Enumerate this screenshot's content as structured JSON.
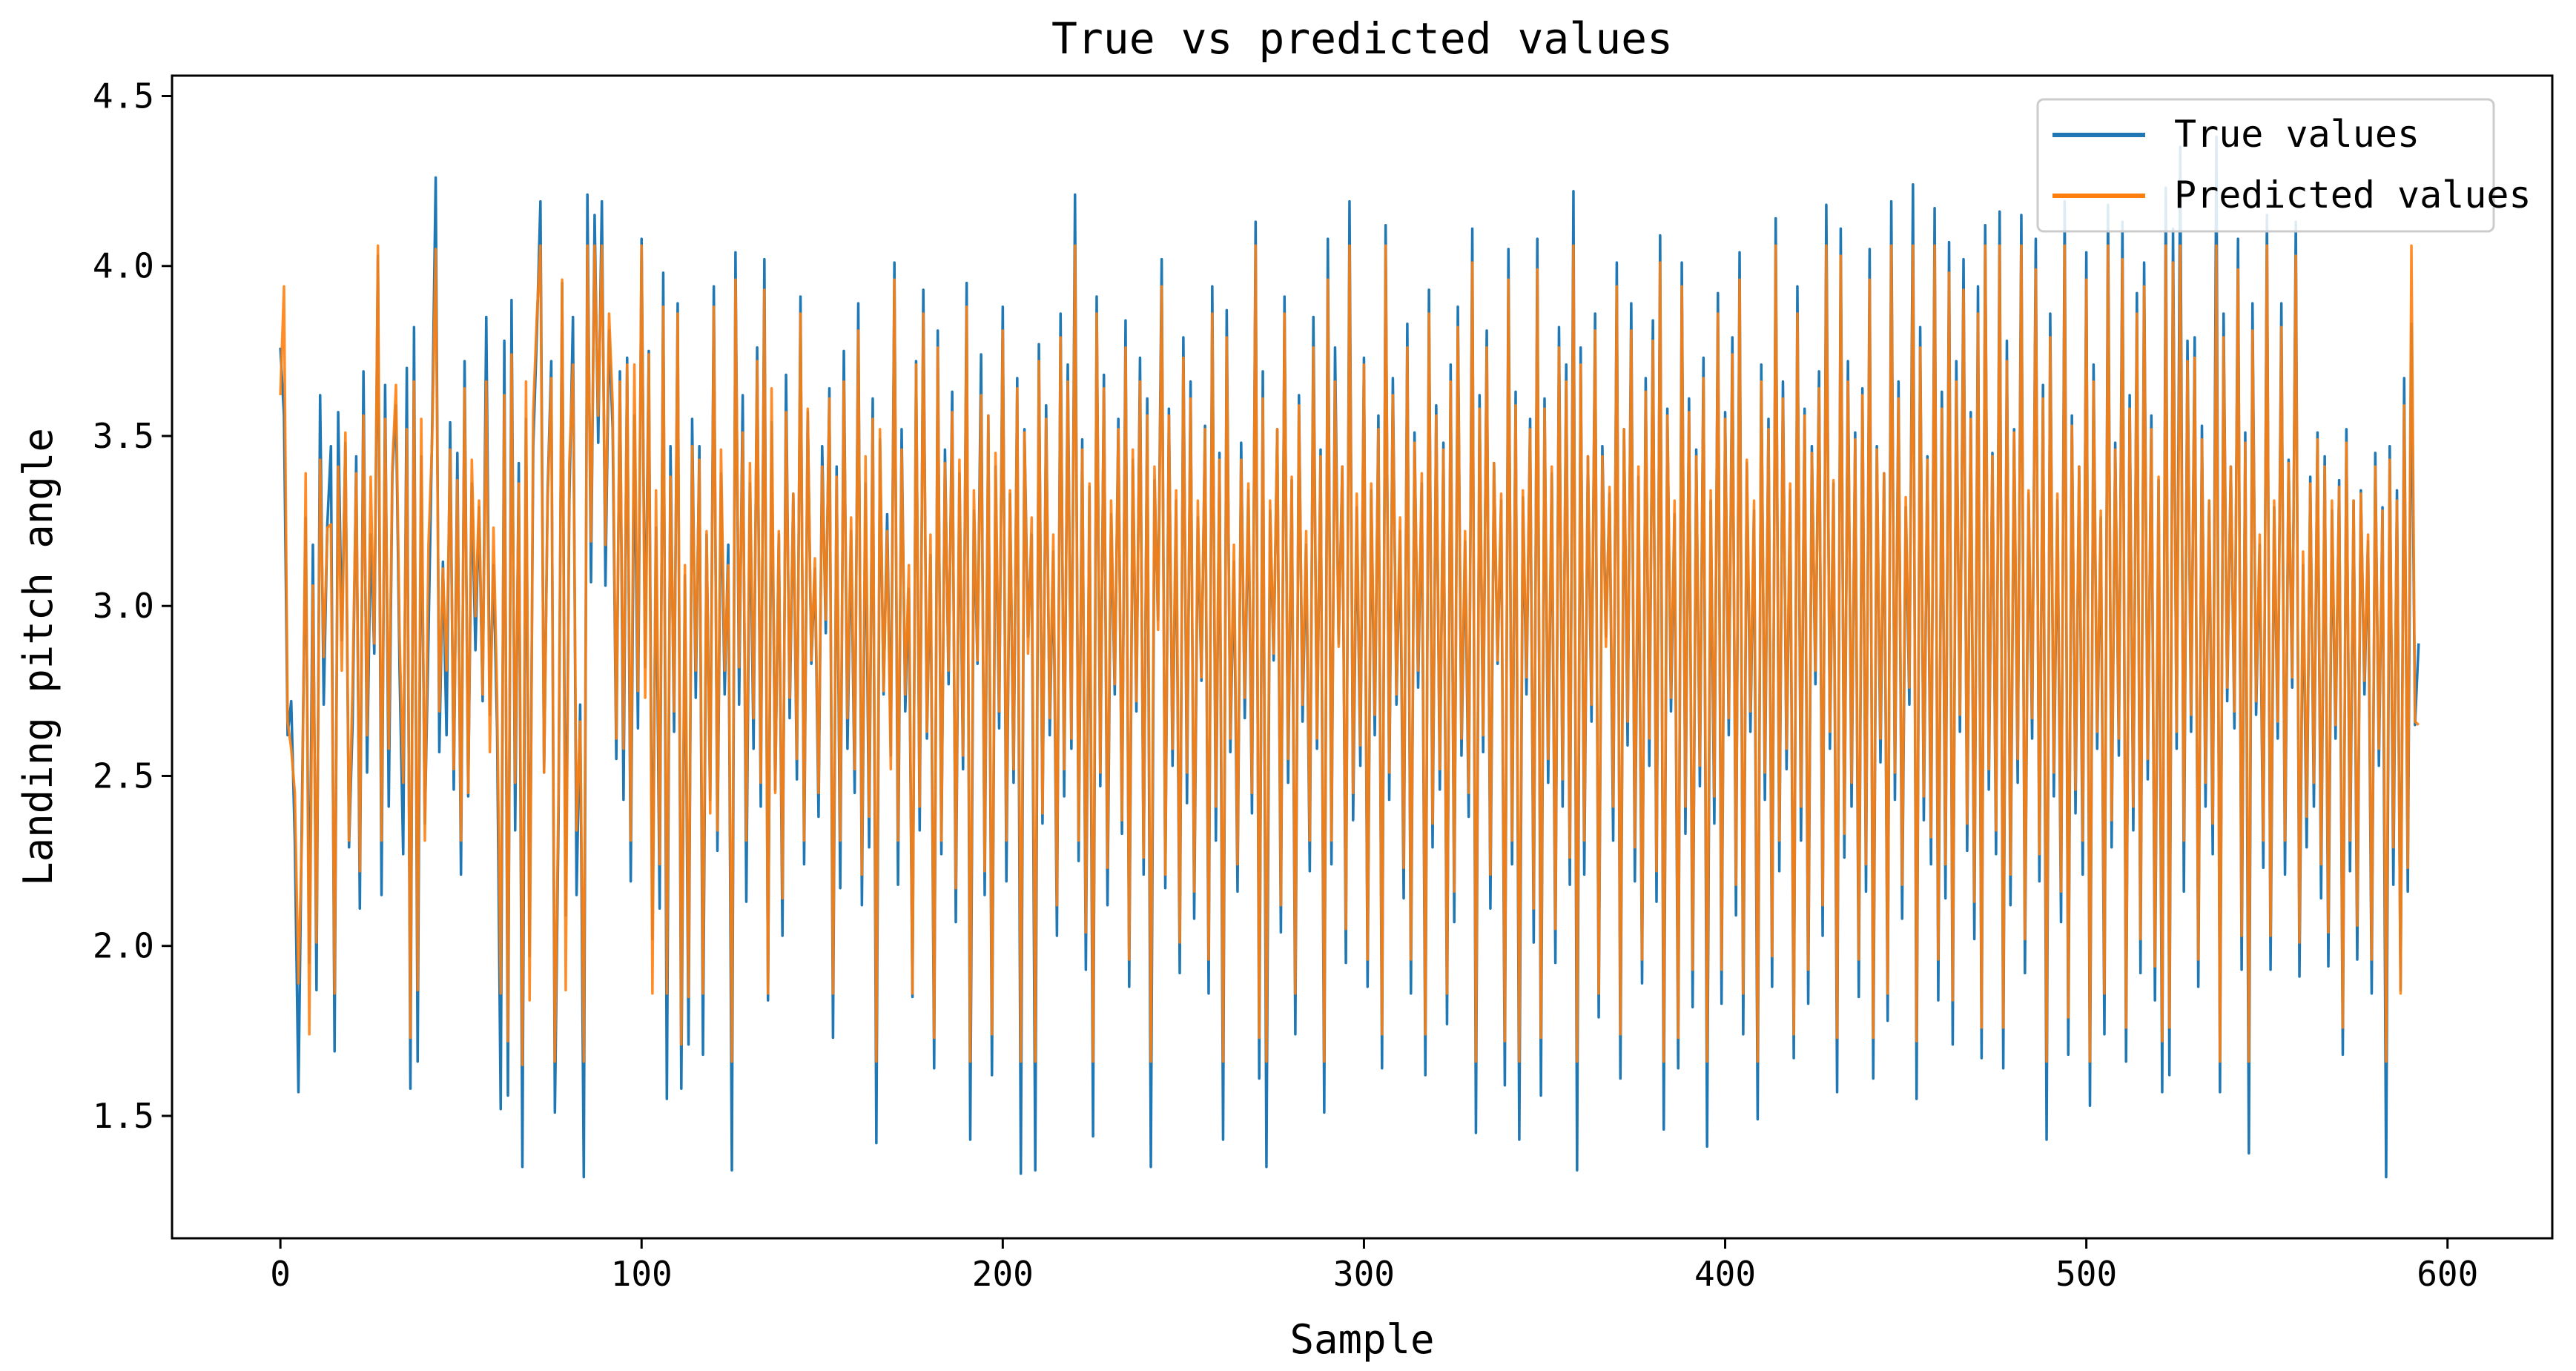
{
  "chart_data": {
    "type": "line",
    "title": "True vs predicted values",
    "xlabel": "Sample",
    "ylabel": "Landing pitch angle",
    "xlim": [
      -30,
      629
    ],
    "ylim": [
      1.14,
      4.56
    ],
    "x_ticks": [
      0,
      100,
      200,
      300,
      400,
      500,
      600
    ],
    "y_ticks": [
      1.5,
      2.0,
      2.5,
      3.0,
      3.5,
      4.0,
      4.5
    ],
    "y_tick_labels": [
      "1.5",
      "2.0",
      "2.5",
      "3.0",
      "3.5",
      "4.0",
      "4.5"
    ],
    "grid": false,
    "legend_position": "top-right",
    "n_samples": 600,
    "series": [
      {
        "name": "True values",
        "color": "#1f77b4",
        "values": [
          3.76,
          3.56,
          2.62,
          2.72,
          2.31,
          1.57,
          2.43,
          3.26,
          1.95,
          3.18,
          1.87,
          3.62,
          2.71,
          3.24,
          3.47,
          1.69,
          3.57,
          2.9,
          3.48,
          2.29,
          2.66,
          3.44,
          2.11,
          3.69,
          2.51,
          3.21,
          2.86,
          4.03,
          2.15,
          3.65,
          2.41,
          3.39,
          3.59,
          2.81,
          2.27,
          3.7,
          1.58,
          3.82,
          1.66,
          3.44,
          2.36,
          2.91,
          3.51,
          4.26,
          2.57,
          3.13,
          2.62,
          3.54,
          2.46,
          3.45,
          2.21,
          3.72,
          2.44,
          3.36,
          2.87,
          3.29,
          2.72,
          3.85,
          2.68,
          3.12,
          2.64,
          1.52,
          3.78,
          1.56,
          3.9,
          2.34,
          3.42,
          1.35,
          3.55,
          1.97,
          3.47,
          3.8,
          4.19,
          2.51,
          3.34,
          3.72,
          1.51,
          2.37,
          3.95,
          2.09,
          3.31,
          3.85,
          2.15,
          2.71,
          1.32,
          4.21,
          3.07,
          4.15,
          3.48,
          4.19,
          3.06,
          3.81,
          3.52,
          2.55,
          3.69,
          2.43,
          3.73,
          2.19,
          3.56,
          2.64,
          4.08,
          2.82,
          3.75,
          2.02,
          3.23,
          2.11,
          3.98,
          1.55,
          3.47,
          2.63,
          3.89,
          1.58,
          3.09,
          1.71,
          3.55,
          2.73,
          3.47,
          1.68,
          3.21,
          2.43,
          3.94,
          2.28,
          3.39,
          2.74,
          3.18,
          1.34,
          4.04,
          2.71,
          3.62,
          2.13,
          3.36,
          2.58,
          3.76,
          2.41,
          4.02,
          1.84,
          3.54,
          2.46,
          3.21,
          2.03,
          3.68,
          2.67,
          3.33,
          2.49,
          3.91,
          2.24,
          3.57,
          2.83,
          3.11,
          2.38,
          3.47,
          2.92,
          3.64,
          1.73,
          3.41,
          2.17,
          3.75,
          2.58,
          3.22,
          2.45,
          3.89,
          2.12,
          3.36,
          2.29,
          3.61,
          1.42,
          3.49,
          2.74,
          3.27,
          2.56,
          4.01,
          2.18,
          3.52,
          2.69,
          3.05,
          1.85,
          3.72,
          2.34,
          3.93,
          2.61,
          3.15,
          1.64,
          3.81,
          2.27,
          3.46,
          2.77,
          3.63,
          2.07,
          3.39,
          2.52,
          3.95,
          1.43,
          3.28,
          2.83,
          3.74,
          2.15,
          3.56,
          1.62,
          3.41,
          2.64,
          3.88,
          2.19,
          3.33,
          2.48,
          3.67,
          1.33,
          3.52,
          2.91,
          3.21,
          1.34,
          3.77,
          2.36,
          3.59,
          2.62,
          3.16,
          2.03,
          3.86,
          2.44,
          3.71,
          2.58,
          4.21,
          2.25,
          3.49,
          1.93,
          3.35,
          1.44,
          3.91,
          2.47,
          3.68,
          2.12,
          3.27,
          2.74,
          3.55,
          2.33,
          3.84,
          1.88,
          3.43,
          2.69,
          3.73,
          2.21,
          3.61,
          1.35,
          3.37,
          2.96,
          4.02,
          2.17,
          3.58,
          2.53,
          3.31,
          1.92,
          3.79,
          2.42,
          3.66,
          2.08,
          3.26,
          2.78,
          3.53,
          1.86,
          3.94,
          2.31,
          3.45,
          1.43,
          3.87,
          2.57,
          3.13,
          2.16,
          3.48,
          2.67,
          3.34,
          2.39,
          4.13,
          1.61,
          3.69,
          1.35,
          3.28,
          2.84,
          3.52,
          2.04,
          3.91,
          2.48,
          3.37,
          1.74,
          3.62,
          2.66,
          3.18,
          2.22,
          3.85,
          2.58,
          3.46,
          1.51,
          4.08,
          2.24,
          3.76,
          2.89,
          3.41,
          1.95,
          4.19,
          2.37,
          3.29,
          2.53,
          3.73,
          1.88,
          3.34,
          2.62,
          3.56,
          1.64,
          4.12,
          2.43,
          3.67,
          2.71,
          3.22,
          2.14,
          3.83,
          1.86,
          3.51,
          2.76,
          3.36,
          1.62,
          3.93,
          2.29,
          3.59,
          2.46,
          3.48,
          1.77,
          3.71,
          2.07,
          3.88,
          2.56,
          3.19,
          2.38,
          4.11,
          1.45,
          3.62,
          2.57,
          3.81,
          2.11,
          3.42,
          2.83,
          3.31,
          1.59,
          4.05,
          2.24,
          3.63,
          1.43,
          3.32,
          2.74,
          3.55,
          2.01,
          4.08,
          1.56,
          3.61,
          2.48,
          3.39,
          1.95,
          3.82,
          2.41,
          3.71,
          2.18,
          4.22,
          1.34,
          3.76,
          2.21,
          3.44,
          2.66,
          3.86,
          1.79,
          3.47,
          2.91,
          3.33,
          2.31,
          4.01,
          1.61,
          3.52,
          2.59,
          3.89,
          2.19,
          3.38,
          1.89,
          3.67,
          2.53,
          3.84,
          2.13,
          4.09,
          1.46,
          3.58,
          2.69,
          3.27,
          1.64,
          4.01,
          2.33,
          3.61,
          1.82,
          3.46,
          2.47,
          3.73,
          1.41,
          3.31,
          2.36,
          3.92,
          1.83,
          3.57,
          2.62,
          3.79,
          2.09,
          4.04,
          1.74,
          3.42,
          2.63,
          3.28,
          1.49,
          3.71,
          2.43,
          3.55,
          1.88,
          4.14,
          2.22,
          3.66,
          2.52,
          3.34,
          1.67,
          3.94,
          2.31,
          3.58,
          1.83,
          3.47,
          2.77,
          3.69,
          2.03,
          4.18,
          2.58,
          3.36,
          1.57,
          4.11,
          2.26,
          3.72,
          2.41,
          3.51,
          1.85,
          3.64,
          2.16,
          4.05,
          1.61,
          3.47,
          2.54,
          3.39,
          1.78,
          4.19,
          2.43,
          3.66,
          2.08,
          3.29,
          2.71,
          4.24,
          1.55,
          3.82,
          2.37,
          3.44,
          2.24,
          4.17,
          1.84,
          3.63,
          2.14,
          4.07,
          1.71,
          3.72,
          2.63,
          4.02,
          2.28,
          3.57,
          2.02,
          3.94,
          1.67,
          4.12,
          2.46,
          3.45,
          2.27,
          4.16,
          1.64,
          3.78,
          2.12,
          3.52,
          2.48,
          4.15,
          1.92,
          3.33,
          2.61,
          4.08,
          2.19,
          3.65,
          1.43,
          3.86,
          2.44,
          3.31,
          2.07,
          4.19,
          1.68,
          3.56,
          2.39,
          3.41,
          2.21,
          4.04,
          1.53,
          3.71,
          2.58,
          3.26,
          1.74,
          4.18,
          2.29,
          3.48,
          2.56,
          4.13,
          1.66,
          3.62,
          2.34,
          3.92,
          1.92,
          4.01,
          2.49,
          3.56,
          1.84,
          3.37,
          1.57,
          4.23,
          1.62,
          4.11,
          2.58,
          4.35,
          2.16,
          3.78,
          2.63,
          3.79,
          1.88,
          3.53,
          2.41,
          3.31,
          2.27,
          4.38,
          1.57,
          3.86,
          2.72,
          3.41,
          2.64,
          4.08,
          1.93,
          3.51,
          1.39,
          3.89,
          2.68,
          3.18,
          2.23,
          4.15,
          1.93,
          3.29,
          2.61,
          3.89,
          2.21,
          3.43,
          2.76,
          4.13,
          1.91,
          3.12,
          2.29,
          3.38,
          2.41,
          3.51,
          2.14,
          3.44,
          1.94,
          3.28,
          2.61,
          3.37,
          1.68,
          3.52,
          2.22,
          3.31,
          1.96,
          3.34,
          2.74,
          3.19,
          1.86,
          3.45,
          2.53,
          3.29,
          1.32,
          3.47,
          2.18,
          3.34,
          1.87,
          3.67,
          2.16,
          3.83,
          2.65,
          2.89
        ]
      },
      {
        "name": "Predicted values",
        "color": "#ff7f0e",
        "values": [
          3.62,
          3.94,
          2.66,
          2.58,
          2.45,
          1.89,
          2.34,
          3.39,
          1.74,
          3.06,
          2.01,
          3.43,
          2.85,
          3.23,
          3.24,
          1.86,
          3.41,
          2.81,
          3.51,
          2.31,
          2.77,
          3.39,
          2.22,
          3.56,
          2.62,
          3.38,
          2.89,
          4.06,
          2.31,
          3.55,
          2.58,
          3.41,
          3.65,
          2.91,
          2.48,
          3.52,
          1.73,
          3.66,
          1.87,
          3.55,
          2.31,
          3.18,
          3.48,
          4.05,
          2.69,
          3.11,
          2.81,
          3.46,
          2.52,
          3.37,
          2.31,
          3.64,
          2.45,
          3.43,
          2.97,
          3.31,
          2.74,
          3.66,
          2.57,
          3.23,
          2.73,
          1.86,
          3.62,
          1.72,
          3.74,
          2.48,
          3.36,
          1.65,
          3.66,
          1.84,
          3.57,
          3.85,
          4.06,
          2.51,
          3.32,
          3.67,
          1.66,
          2.44,
          3.96,
          1.87,
          3.42,
          3.71,
          2.34,
          2.66,
          1.66,
          4.06,
          3.19,
          4.06,
          3.56,
          4.06,
          3.18,
          3.86,
          3.59,
          2.61,
          3.66,
          2.58,
          3.71,
          2.31,
          3.71,
          2.75,
          4.06,
          2.73,
          3.74,
          1.86,
          3.34,
          2.24,
          3.88,
          1.86,
          3.38,
          2.69,
          3.86,
          1.71,
          3.12,
          1.85,
          3.47,
          2.81,
          3.43,
          1.86,
          3.22,
          2.39,
          3.88,
          2.34,
          3.46,
          2.81,
          3.12,
          1.66,
          3.96,
          2.82,
          3.51,
          2.31,
          3.42,
          2.67,
          3.72,
          2.48,
          3.93,
          1.86,
          3.64,
          2.45,
          3.22,
          2.14,
          3.57,
          2.73,
          3.33,
          2.55,
          3.86,
          2.31,
          3.58,
          2.84,
          3.14,
          2.45,
          3.41,
          2.96,
          3.61,
          1.86,
          3.38,
          2.31,
          3.66,
          2.67,
          3.26,
          2.52,
          3.81,
          2.21,
          3.44,
          2.38,
          3.55,
          1.66,
          3.52,
          2.75,
          3.22,
          2.52,
          3.96,
          2.31,
          3.46,
          2.74,
          3.12,
          1.86,
          3.71,
          2.41,
          3.86,
          2.63,
          3.21,
          1.73,
          3.76,
          2.31,
          3.42,
          2.81,
          3.57,
          2.17,
          3.43,
          2.56,
          3.88,
          1.66,
          3.34,
          2.84,
          3.62,
          2.22,
          3.56,
          1.74,
          3.45,
          2.69,
          3.81,
          2.31,
          3.34,
          2.52,
          3.64,
          1.66,
          3.51,
          2.86,
          3.26,
          1.66,
          3.72,
          2.39,
          3.55,
          2.67,
          3.21,
          2.12,
          3.79,
          2.52,
          3.66,
          2.61,
          4.06,
          2.31,
          3.46,
          2.04,
          3.36,
          1.66,
          3.86,
          2.51,
          3.64,
          2.23,
          3.31,
          2.77,
          3.52,
          2.37,
          3.76,
          1.96,
          3.46,
          2.72,
          3.66,
          2.26,
          3.56,
          1.66,
          3.41,
          2.93,
          3.94,
          2.21,
          3.56,
          2.58,
          3.34,
          2.01,
          3.73,
          2.51,
          3.61,
          2.16,
          3.31,
          2.79,
          3.52,
          1.96,
          3.86,
          2.41,
          3.43,
          1.66,
          3.79,
          2.61,
          3.18,
          2.24,
          3.43,
          2.73,
          3.36,
          2.45,
          4.06,
          1.73,
          3.61,
          1.66,
          3.31,
          2.86,
          3.52,
          2.12,
          3.86,
          2.55,
          3.38,
          1.86,
          3.59,
          2.71,
          3.22,
          2.31,
          3.76,
          2.61,
          3.44,
          1.66,
          3.96,
          2.31,
          3.66,
          2.88,
          3.41,
          2.05,
          4.06,
          2.45,
          3.33,
          2.59,
          3.71,
          1.96,
          3.36,
          2.68,
          3.52,
          1.74,
          4.06,
          2.51,
          3.62,
          2.74,
          3.26,
          2.23,
          3.76,
          1.96,
          3.48,
          2.81,
          3.39,
          1.74,
          3.86,
          2.36,
          3.56,
          2.52,
          3.46,
          1.86,
          3.66,
          2.16,
          3.82,
          2.61,
          3.22,
          2.45,
          4.01,
          1.66,
          3.58,
          2.62,
          3.76,
          2.21,
          3.42,
          2.84,
          3.33,
          1.72,
          3.96,
          2.31,
          3.59,
          1.66,
          3.34,
          2.79,
          3.52,
          2.11,
          3.99,
          1.73,
          3.58,
          2.55,
          3.41,
          2.05,
          3.76,
          2.49,
          3.66,
          2.26,
          4.06,
          1.66,
          3.71,
          2.31,
          3.44,
          2.71,
          3.81,
          1.86,
          3.44,
          2.88,
          3.35,
          2.41,
          3.94,
          1.74,
          3.52,
          2.66,
          3.81,
          2.29,
          3.41,
          1.96,
          3.63,
          2.61,
          3.78,
          2.22,
          4.01,
          1.66,
          3.56,
          2.73,
          3.31,
          1.73,
          3.94,
          2.41,
          3.57,
          1.93,
          3.44,
          2.53,
          3.67,
          1.66,
          3.34,
          2.44,
          3.86,
          1.93,
          3.55,
          2.67,
          3.74,
          2.18,
          3.96,
          1.86,
          3.43,
          2.69,
          3.31,
          1.66,
          3.66,
          2.51,
          3.52,
          1.97,
          4.06,
          2.31,
          3.61,
          2.58,
          3.36,
          1.74,
          3.86,
          2.41,
          3.56,
          1.93,
          3.45,
          2.81,
          3.64,
          2.12,
          4.06,
          2.63,
          3.37,
          1.73,
          4.03,
          2.33,
          3.66,
          2.48,
          3.49,
          1.96,
          3.62,
          2.24,
          3.96,
          1.73,
          3.46,
          2.61,
          3.39,
          1.86,
          4.06,
          2.51,
          3.61,
          2.18,
          3.32,
          2.76,
          4.06,
          1.72,
          3.76,
          2.44,
          3.43,
          2.32,
          4.06,
          1.96,
          3.58,
          2.24,
          3.98,
          1.84,
          3.66,
          2.68,
          3.93,
          2.36,
          3.55,
          2.13,
          3.86,
          1.76,
          4.06,
          2.52,
          3.44,
          2.34,
          4.06,
          1.76,
          3.72,
          2.21,
          3.51,
          2.55,
          4.06,
          2.02,
          3.34,
          2.67,
          3.99,
          2.27,
          3.61,
          1.66,
          3.79,
          2.51,
          3.33,
          2.16,
          4.06,
          1.79,
          3.53,
          2.46,
          3.41,
          2.31,
          3.96,
          1.66,
          3.66,
          2.63,
          3.28,
          1.86,
          4.06,
          2.37,
          3.46,
          2.61,
          4.02,
          1.76,
          3.58,
          2.41,
          3.86,
          2.02,
          3.94,
          2.55,
          3.52,
          1.94,
          3.38,
          1.72,
          4.06,
          1.76,
          4.01,
          2.63,
          4.06,
          2.31,
          3.72,
          2.68,
          3.73,
          1.96,
          3.49,
          2.48,
          3.31,
          2.36,
          4.06,
          1.66,
          3.79,
          2.76,
          3.41,
          2.69,
          3.99,
          2.03,
          3.48,
          1.66,
          3.81,
          2.72,
          3.21,
          2.31,
          4.06,
          2.03,
          3.31,
          2.66,
          3.82,
          2.31,
          3.42,
          2.79,
          4.03,
          2.01,
          3.16,
          2.38,
          3.36,
          2.48,
          3.49,
          2.24,
          3.41,
          2.04,
          3.31,
          2.65,
          3.35,
          1.76,
          3.48,
          2.31,
          3.31,
          2.06,
          3.33,
          2.78,
          3.21,
          1.96,
          3.41,
          2.58,
          3.28,
          1.66,
          3.43,
          2.29,
          3.31,
          1.86,
          3.59,
          2.23,
          4.06,
          2.66,
          2.65
        ]
      }
    ]
  }
}
